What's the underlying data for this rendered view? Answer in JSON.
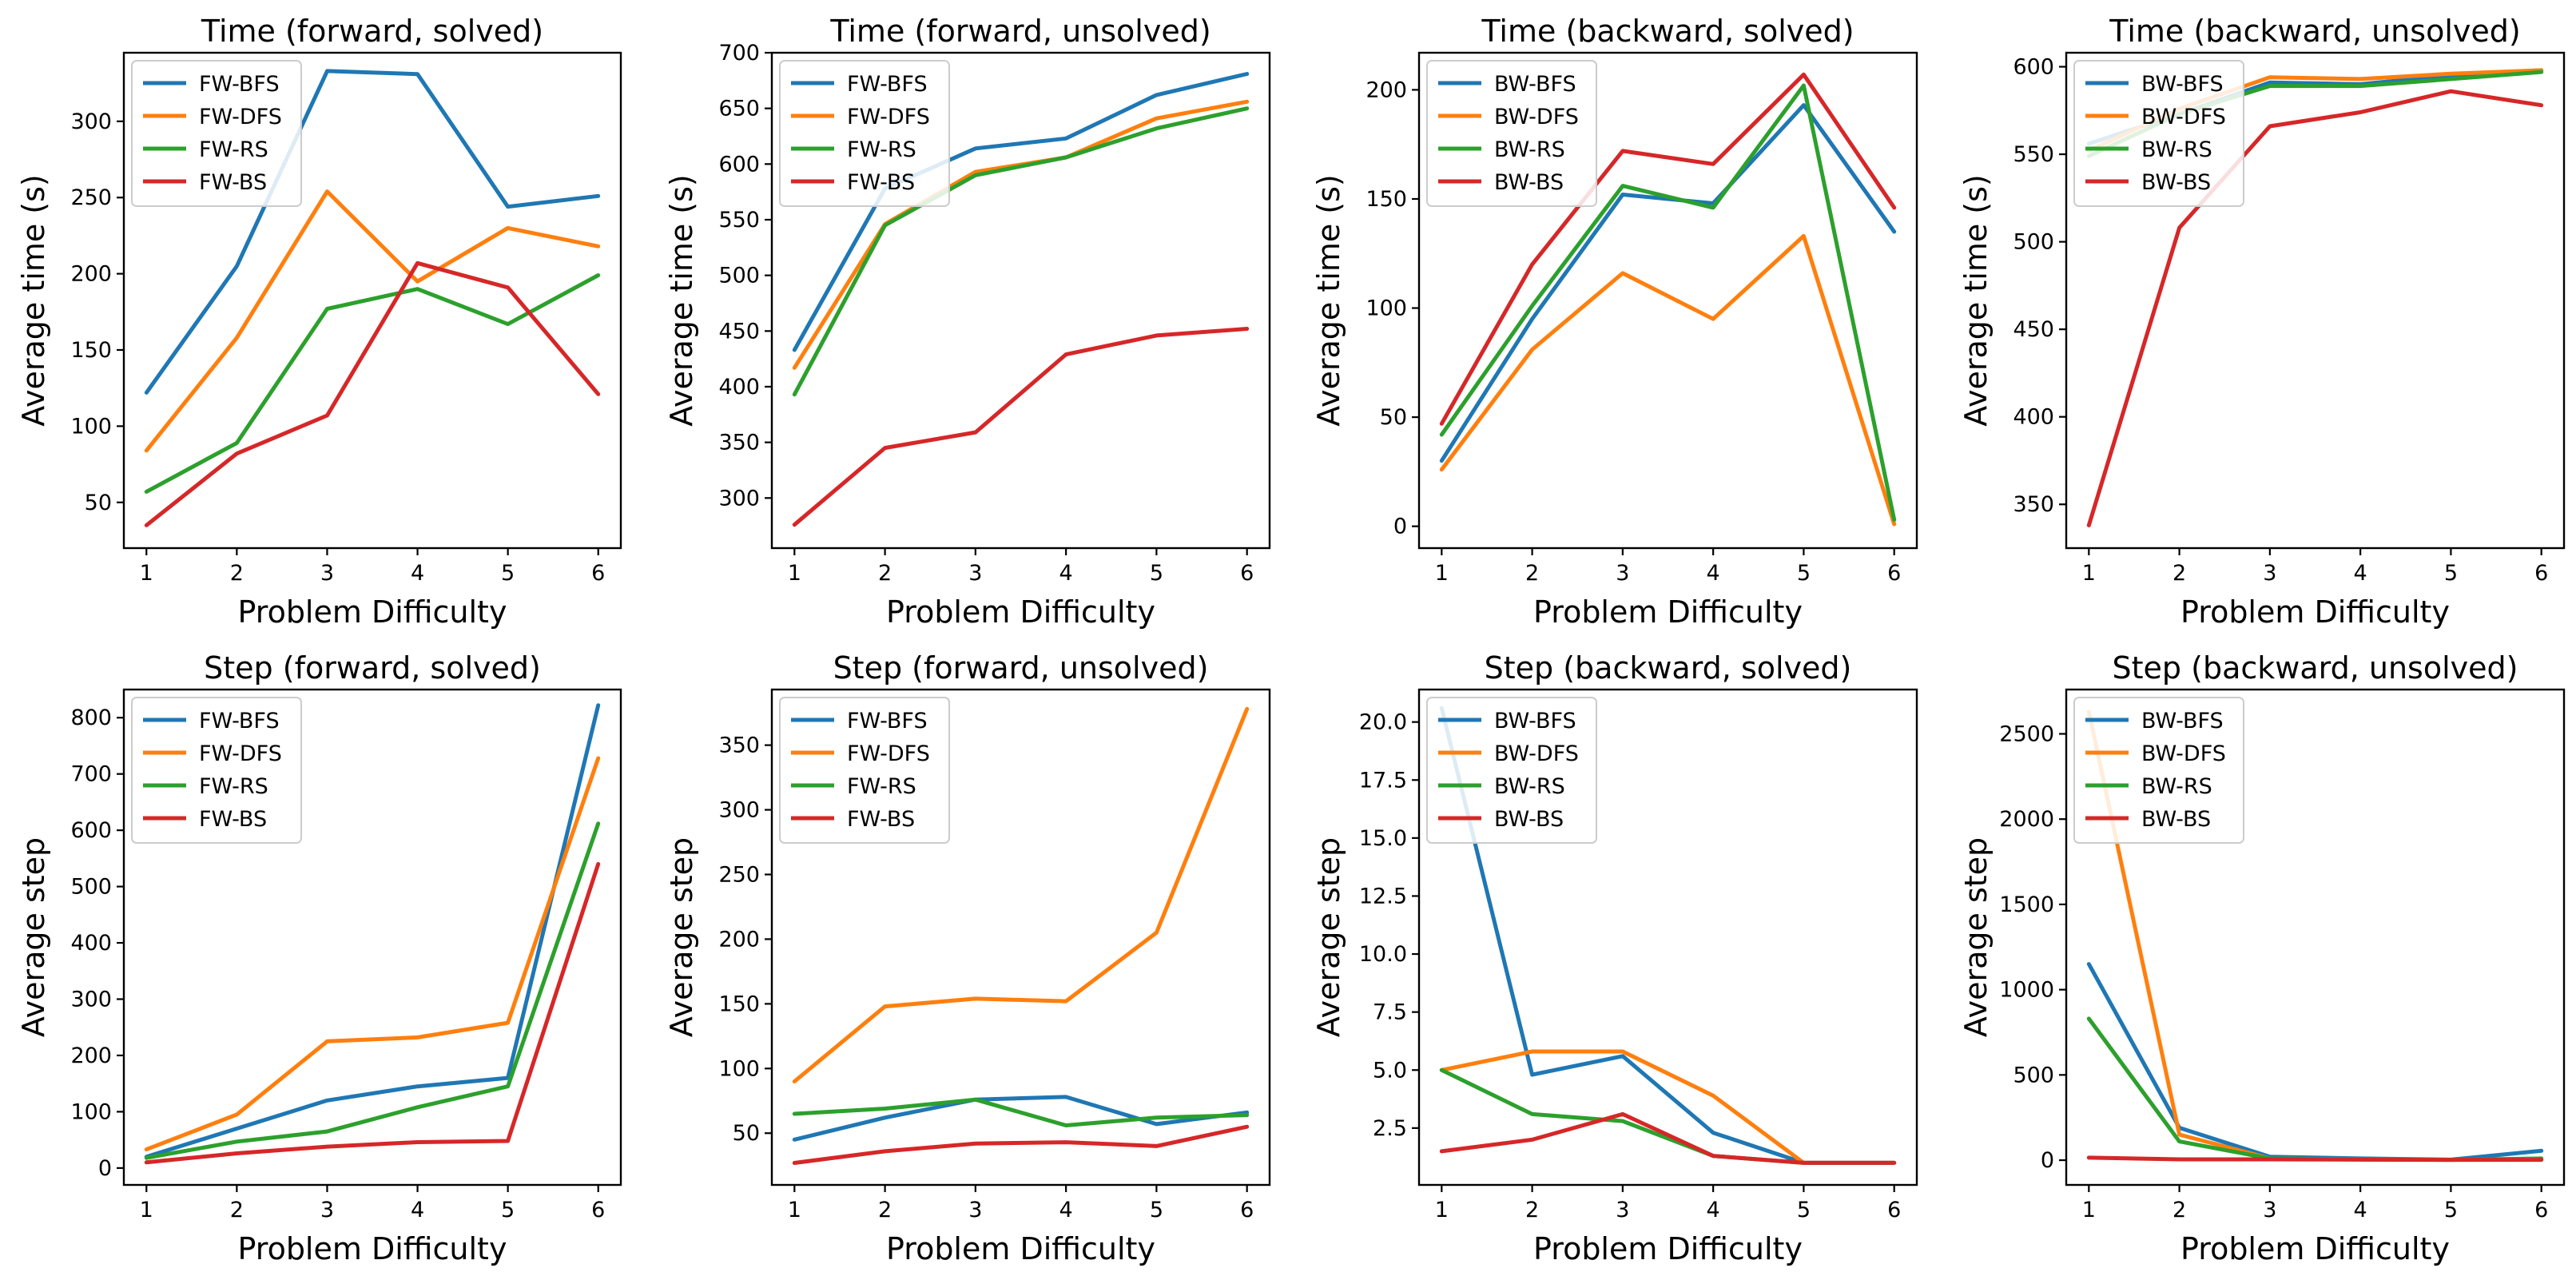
{
  "colors": {
    "blue": "#1f77b4",
    "orange": "#ff7f0e",
    "green": "#2ca02c",
    "red": "#d62728"
  },
  "chart_data": [
    {
      "type": "line",
      "title": "Time (forward, solved)",
      "xlabel": "Problem Difficulty",
      "ylabel": "Average time (s)",
      "x": [
        1,
        2,
        3,
        4,
        5,
        6
      ],
      "xlim": [
        0.75,
        6.25
      ],
      "ylim": [
        20,
        345
      ],
      "yticks": [
        50,
        100,
        150,
        200,
        250,
        300
      ],
      "ytick_labels": [
        "50",
        "100",
        "150",
        "200",
        "250",
        "300"
      ],
      "legend_loc": "upper-left",
      "series": [
        {
          "name": "FW-BFS",
          "color": "#1f77b4",
          "values": [
            122,
            205,
            333,
            331,
            244,
            251
          ]
        },
        {
          "name": "FW-DFS",
          "color": "#ff7f0e",
          "values": [
            84,
            158,
            254,
            195,
            230,
            218
          ]
        },
        {
          "name": "FW-RS",
          "color": "#2ca02c",
          "values": [
            57,
            89,
            177,
            190,
            167,
            199
          ]
        },
        {
          "name": "FW-BS",
          "color": "#d62728",
          "values": [
            35,
            82,
            107,
            207,
            191,
            121
          ]
        }
      ]
    },
    {
      "type": "line",
      "title": "Time (forward, unsolved)",
      "xlabel": "Problem Difficulty",
      "ylabel": "Average time (s)",
      "x": [
        1,
        2,
        3,
        4,
        5,
        6
      ],
      "xlim": [
        0.75,
        6.25
      ],
      "ylim": [
        255,
        700
      ],
      "yticks": [
        300,
        350,
        400,
        450,
        500,
        550,
        600,
        650,
        700
      ],
      "ytick_labels": [
        "300",
        "350",
        "400",
        "450",
        "500",
        "550",
        "600",
        "650",
        "700"
      ],
      "legend_loc": "upper-left",
      "series": [
        {
          "name": "FW-BFS",
          "color": "#1f77b4",
          "values": [
            433,
            578,
            614,
            623,
            662,
            681
          ]
        },
        {
          "name": "FW-DFS",
          "color": "#ff7f0e",
          "values": [
            417,
            546,
            593,
            606,
            641,
            656
          ]
        },
        {
          "name": "FW-RS",
          "color": "#2ca02c",
          "values": [
            393,
            545,
            590,
            606,
            632,
            650
          ]
        },
        {
          "name": "FW-BS",
          "color": "#d62728",
          "values": [
            276,
            345,
            359,
            429,
            446,
            452
          ]
        }
      ]
    },
    {
      "type": "line",
      "title": "Time (backward, solved)",
      "xlabel": "Problem Difficulty",
      "ylabel": "Average time (s)",
      "x": [
        1,
        2,
        3,
        4,
        5,
        6
      ],
      "xlim": [
        0.75,
        6.25
      ],
      "ylim": [
        -10,
        217
      ],
      "yticks": [
        0,
        50,
        100,
        150,
        200
      ],
      "ytick_labels": [
        "0",
        "50",
        "100",
        "150",
        "200"
      ],
      "legend_loc": "upper-left",
      "series": [
        {
          "name": "BW-BFS",
          "color": "#1f77b4",
          "values": [
            30,
            95,
            152,
            148,
            193,
            135
          ]
        },
        {
          "name": "BW-DFS",
          "color": "#ff7f0e",
          "values": [
            26,
            81,
            116,
            95,
            133,
            1
          ]
        },
        {
          "name": "BW-RS",
          "color": "#2ca02c",
          "values": [
            42,
            101,
            156,
            146,
            202,
            3
          ]
        },
        {
          "name": "BW-BS",
          "color": "#d62728",
          "values": [
            47,
            120,
            172,
            166,
            207,
            146
          ]
        }
      ]
    },
    {
      "type": "line",
      "title": "Time (backward, unsolved)",
      "xlabel": "Problem Difficulty",
      "ylabel": "Average time (s)",
      "x": [
        1,
        2,
        3,
        4,
        5,
        6
      ],
      "xlim": [
        0.75,
        6.25
      ],
      "ylim": [
        325,
        608
      ],
      "yticks": [
        350,
        400,
        450,
        500,
        550,
        600
      ],
      "ytick_labels": [
        "350",
        "400",
        "450",
        "500",
        "550",
        "600"
      ],
      "legend_loc": "upper-left",
      "series": [
        {
          "name": "BW-BFS",
          "color": "#1f77b4",
          "values": [
            556,
            573,
            591,
            590,
            595,
            598
          ]
        },
        {
          "name": "BW-DFS",
          "color": "#ff7f0e",
          "values": [
            552,
            576,
            594,
            593,
            596,
            598
          ]
        },
        {
          "name": "BW-RS",
          "color": "#2ca02c",
          "values": [
            549,
            573,
            589,
            589,
            593,
            597
          ]
        },
        {
          "name": "BW-BS",
          "color": "#d62728",
          "values": [
            338,
            508,
            566,
            574,
            586,
            578
          ]
        }
      ]
    },
    {
      "type": "line",
      "title": "Step (forward, solved)",
      "xlabel": "Problem Difficulty",
      "ylabel": "Average step",
      "x": [
        1,
        2,
        3,
        4,
        5,
        6
      ],
      "xlim": [
        0.75,
        6.25
      ],
      "ylim": [
        -30,
        850
      ],
      "yticks": [
        0,
        100,
        200,
        300,
        400,
        500,
        600,
        700,
        800
      ],
      "ytick_labels": [
        "0",
        "100",
        "200",
        "300",
        "400",
        "500",
        "600",
        "700",
        "800"
      ],
      "legend_loc": "upper-left",
      "series": [
        {
          "name": "FW-BFS",
          "color": "#1f77b4",
          "values": [
            20,
            70,
            120,
            145,
            160,
            822
          ]
        },
        {
          "name": "FW-DFS",
          "color": "#ff7f0e",
          "values": [
            33,
            95,
            225,
            232,
            258,
            728
          ]
        },
        {
          "name": "FW-RS",
          "color": "#2ca02c",
          "values": [
            18,
            47,
            65,
            108,
            145,
            612
          ]
        },
        {
          "name": "FW-BS",
          "color": "#d62728",
          "values": [
            10,
            26,
            38,
            46,
            48,
            540
          ]
        }
      ]
    },
    {
      "type": "line",
      "title": "Step (forward, unsolved)",
      "xlabel": "Problem Difficulty",
      "ylabel": "Average step",
      "x": [
        1,
        2,
        3,
        4,
        5,
        6
      ],
      "xlim": [
        0.75,
        6.25
      ],
      "ylim": [
        10,
        393
      ],
      "yticks": [
        50,
        100,
        150,
        200,
        250,
        300,
        350
      ],
      "ytick_labels": [
        "50",
        "100",
        "150",
        "200",
        "250",
        "300",
        "350"
      ],
      "legend_loc": "upper-left",
      "series": [
        {
          "name": "FW-BFS",
          "color": "#1f77b4",
          "values": [
            45,
            62,
            76,
            78,
            57,
            66
          ]
        },
        {
          "name": "FW-DFS",
          "color": "#ff7f0e",
          "values": [
            90,
            148,
            154,
            152,
            205,
            378
          ]
        },
        {
          "name": "FW-RS",
          "color": "#2ca02c",
          "values": [
            65,
            69,
            76,
            56,
            62,
            64
          ]
        },
        {
          "name": "FW-BS",
          "color": "#d62728",
          "values": [
            27,
            36,
            42,
            43,
            40,
            55
          ]
        }
      ]
    },
    {
      "type": "line",
      "title": "Step (backward, solved)",
      "xlabel": "Problem Difficulty",
      "ylabel": "Average step",
      "x": [
        1,
        2,
        3,
        4,
        5,
        6
      ],
      "xlim": [
        0.75,
        6.25
      ],
      "ylim": [
        0.05,
        21.4
      ],
      "yticks": [
        2.5,
        5.0,
        7.5,
        10.0,
        12.5,
        15.0,
        17.5,
        20.0
      ],
      "ytick_labels": [
        "2.5",
        "5.0",
        "7.5",
        "10.0",
        "12.5",
        "15.0",
        "17.5",
        "20.0"
      ],
      "legend_loc": "upper-left",
      "series": [
        {
          "name": "BW-BFS",
          "color": "#1f77b4",
          "values": [
            20.6,
            4.8,
            5.6,
            2.3,
            1.0,
            1.0
          ]
        },
        {
          "name": "BW-DFS",
          "color": "#ff7f0e",
          "values": [
            5.0,
            5.8,
            5.8,
            3.9,
            1.0,
            1.0
          ]
        },
        {
          "name": "BW-RS",
          "color": "#2ca02c",
          "values": [
            5.0,
            3.1,
            2.8,
            1.3,
            1.0,
            1.0
          ]
        },
        {
          "name": "BW-BS",
          "color": "#d62728",
          "values": [
            1.5,
            2.0,
            3.1,
            1.3,
            1.0,
            1.0
          ]
        }
      ]
    },
    {
      "type": "line",
      "title": "Step (backward, unsolved)",
      "xlabel": "Problem Difficulty",
      "ylabel": "Average step",
      "x": [
        1,
        2,
        3,
        4,
        5,
        6
      ],
      "xlim": [
        0.75,
        6.25
      ],
      "ylim": [
        -145,
        2760
      ],
      "yticks": [
        0,
        500,
        1000,
        1500,
        2000,
        2500
      ],
      "ytick_labels": [
        "0",
        "500",
        "1000",
        "1500",
        "2000",
        "2500"
      ],
      "legend_loc": "upper-left",
      "series": [
        {
          "name": "BW-BFS",
          "color": "#1f77b4",
          "values": [
            1150,
            190,
            20,
            10,
            3,
            55
          ]
        },
        {
          "name": "BW-DFS",
          "color": "#ff7f0e",
          "values": [
            2630,
            150,
            10,
            5,
            2,
            5
          ]
        },
        {
          "name": "BW-RS",
          "color": "#2ca02c",
          "values": [
            830,
            110,
            10,
            5,
            2,
            10
          ]
        },
        {
          "name": "BW-BS",
          "color": "#d62728",
          "values": [
            15,
            5,
            5,
            3,
            2,
            2
          ]
        }
      ]
    }
  ]
}
